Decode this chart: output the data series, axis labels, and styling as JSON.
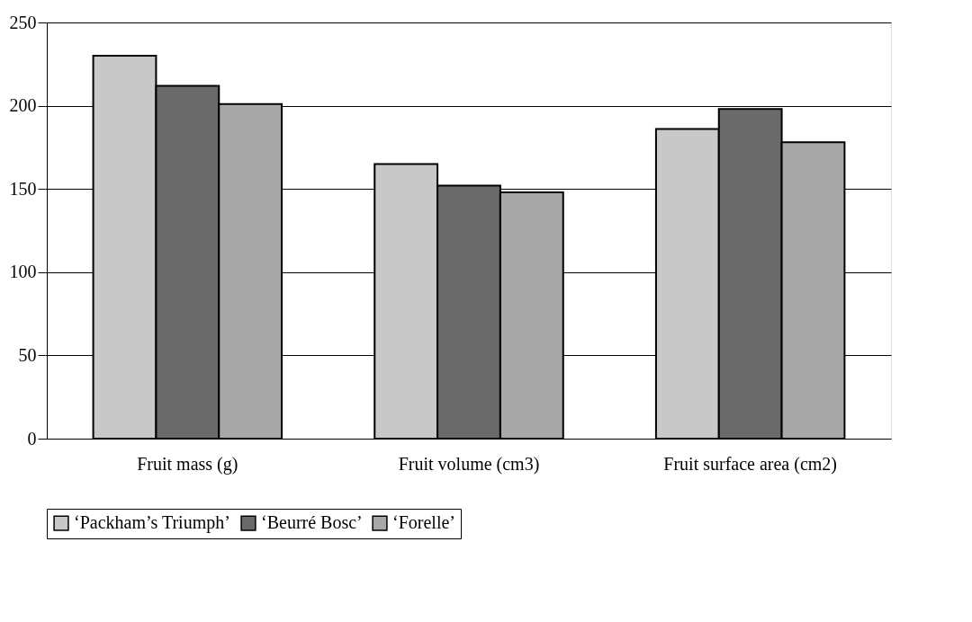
{
  "chart_data": {
    "type": "bar",
    "categories": [
      "Fruit mass (g)",
      "Fruit volume (cm3)",
      "Fruit surface area (cm2)"
    ],
    "series": [
      {
        "name": "‘Packham’s Triumph’",
        "color": "#c8c8c8",
        "values": [
          230,
          165,
          186
        ]
      },
      {
        "name": "‘Beurré Bosc’",
        "color": "#6a6a6a",
        "values": [
          212,
          152,
          198
        ]
      },
      {
        "name": "‘Forelle’",
        "color": "#a8a8a8",
        "values": [
          201,
          148,
          178
        ]
      }
    ],
    "ylim": [
      0,
      250
    ],
    "yticks": [
      0,
      50,
      100,
      150,
      200,
      250
    ],
    "grid": "y",
    "legend": "bottom"
  }
}
